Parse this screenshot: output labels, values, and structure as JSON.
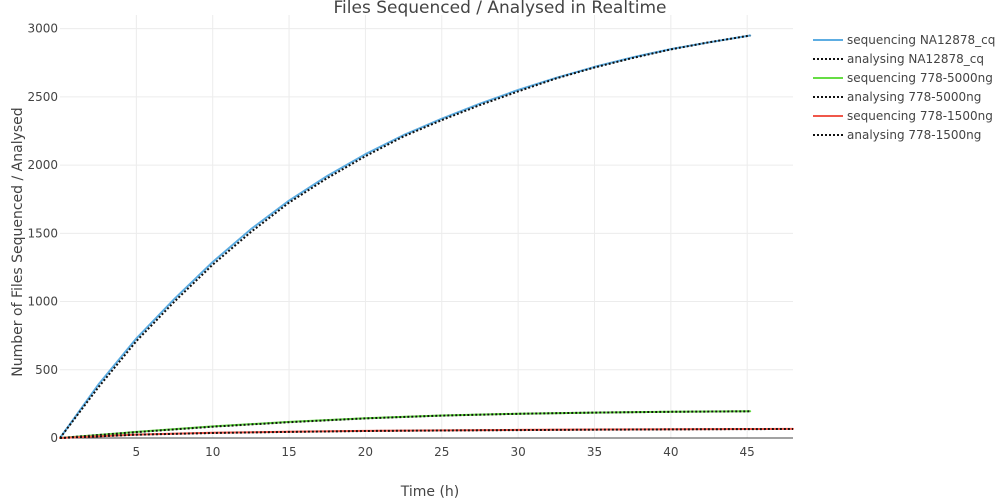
{
  "chart_data": {
    "type": "line",
    "title": "Files Sequenced / Analysed in Realtime",
    "xlabel": "Time (h)",
    "ylabel": "Number of Files Sequenced / Analysed",
    "xlim": [
      0,
      48
    ],
    "ylim": [
      0,
      3100
    ],
    "xticks": [
      5,
      10,
      15,
      20,
      25,
      30,
      35,
      40,
      45
    ],
    "yticks": [
      0,
      500,
      1000,
      1500,
      2000,
      2500,
      3000
    ],
    "grid": true,
    "legend_position": "right",
    "series": [
      {
        "name": "sequencing NA12878_cq",
        "color": "#5dade2",
        "dash": "solid",
        "x": [
          0,
          2.5,
          5,
          7.5,
          10,
          12.5,
          15,
          17.5,
          20,
          22.5,
          25,
          27.5,
          30,
          32.5,
          35,
          37.5,
          40,
          42.5,
          45.2
        ],
        "values": [
          0,
          390,
          730,
          1020,
          1290,
          1530,
          1740,
          1920,
          2080,
          2220,
          2340,
          2450,
          2550,
          2640,
          2720,
          2790,
          2850,
          2900,
          2950
        ]
      },
      {
        "name": "analysing NA12878_cq",
        "color": "#111111",
        "dash": "dotted",
        "x": [
          0,
          2.5,
          5,
          7.5,
          10,
          12.5,
          15,
          17.5,
          20,
          22.5,
          25,
          27.5,
          30,
          32.5,
          35,
          37.5,
          40,
          42.5,
          45.2
        ],
        "values": [
          0,
          370,
          710,
          1000,
          1270,
          1510,
          1725,
          1905,
          2065,
          2210,
          2330,
          2440,
          2540,
          2635,
          2715,
          2785,
          2848,
          2900,
          2950
        ]
      },
      {
        "name": "sequencing 778-5000ng",
        "color": "#66dd44",
        "dash": "solid",
        "x": [
          0,
          5,
          10,
          15,
          20,
          25,
          30,
          35,
          40,
          45.2
        ],
        "values": [
          0,
          45,
          85,
          118,
          145,
          165,
          178,
          186,
          192,
          196
        ]
      },
      {
        "name": "analysing 778-5000ng",
        "color": "#111111",
        "dash": "dotted",
        "x": [
          0,
          5,
          10,
          15,
          20,
          25,
          30,
          35,
          40,
          45.2
        ],
        "values": [
          0,
          43,
          83,
          116,
          144,
          164,
          177,
          186,
          192,
          196
        ]
      },
      {
        "name": "sequencing 778-1500ng",
        "color": "#f0574a",
        "dash": "solid",
        "x": [
          0,
          5,
          10,
          15,
          20,
          25,
          30,
          35,
          40,
          45,
          48
        ],
        "values": [
          0,
          25,
          38,
          46,
          52,
          56,
          59,
          62,
          64,
          66,
          67
        ]
      },
      {
        "name": "analysing 778-1500ng",
        "color": "#111111",
        "dash": "dotted",
        "x": [
          0,
          5,
          10,
          15,
          20,
          25,
          30,
          35,
          40,
          45,
          48
        ],
        "values": [
          0,
          24,
          37,
          45,
          51,
          55,
          58,
          61,
          63,
          65,
          66
        ]
      }
    ]
  }
}
